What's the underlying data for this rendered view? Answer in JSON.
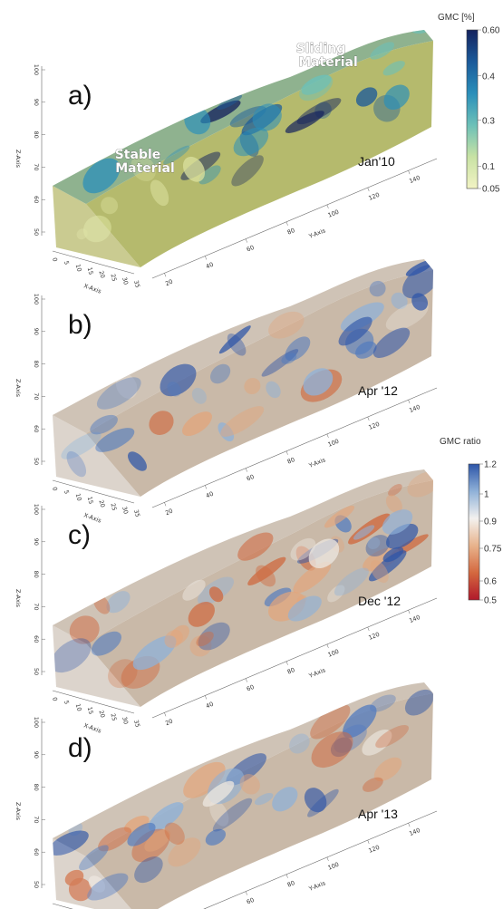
{
  "panels": [
    {
      "letter": "a)",
      "date": "Jan'10",
      "scheme": "gmc",
      "regions": [
        {
          "line1": "Stable",
          "line2": "Material"
        },
        {
          "line1": "Sliding",
          "line2": "Material"
        }
      ]
    },
    {
      "letter": "b)",
      "date": "Apr '12",
      "scheme": "ratio",
      "regions": []
    },
    {
      "letter": "c)",
      "date": "Dec '12",
      "scheme": "ratio",
      "regions": []
    },
    {
      "letter": "d)",
      "date": "Apr '13",
      "scheme": "ratio",
      "regions": []
    }
  ],
  "axes": {
    "z_label": "Z-Axis",
    "x_label": "X-Axis",
    "y_label": "Y-Axis",
    "z_ticks": [
      "50",
      "60",
      "70",
      "80",
      "90",
      "100"
    ],
    "x_ticks": [
      "0",
      "5",
      "10",
      "15",
      "20",
      "25",
      "30",
      "35"
    ],
    "y_ticks": [
      "20",
      "40",
      "60",
      "80",
      "100",
      "120",
      "140"
    ]
  },
  "colorbars": [
    {
      "title": "GMC [%]",
      "ticks": [
        "0.60",
        "0.4",
        "0.3",
        "0.1",
        "0.05"
      ],
      "colors": [
        "#15235e",
        "#1b5a9a",
        "#2a8fba",
        "#6cc0b8",
        "#c8e2a4",
        "#f2f3c4"
      ]
    },
    {
      "title": "GMC ratio",
      "ticks": [
        "1.2",
        "1",
        "0.9",
        "0.75",
        "0.6",
        "0.5"
      ],
      "colors": [
        "#2d55a8",
        "#8fb1d8",
        "#f3f1ef",
        "#e8b38c",
        "#d4683f",
        "#b1182b"
      ]
    }
  ]
}
